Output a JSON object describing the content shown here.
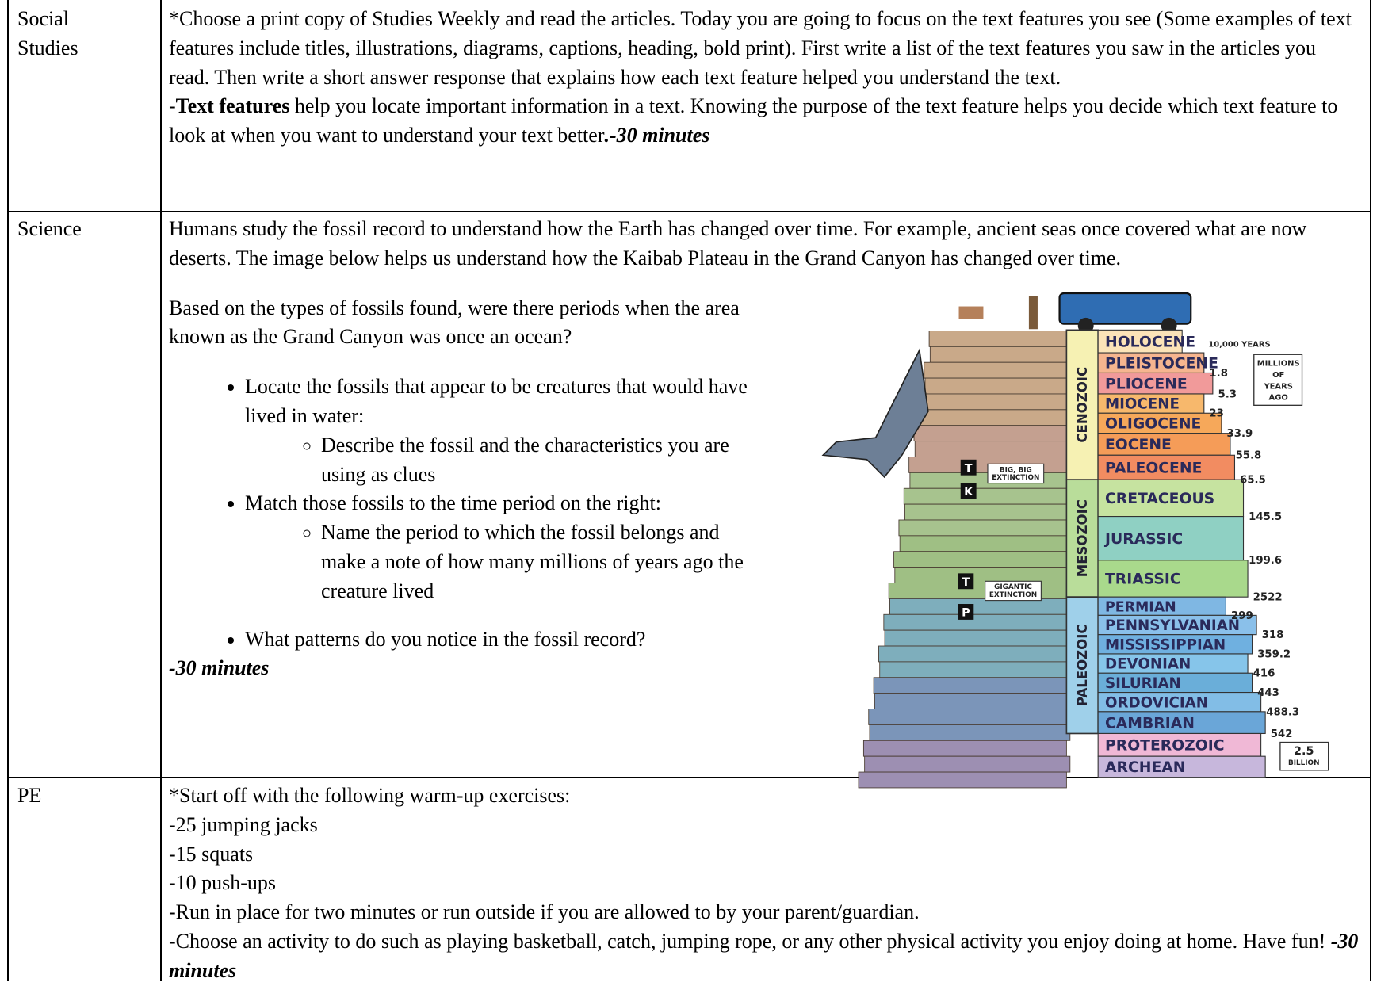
{
  "social_studies": {
    "subject": "Social Studies",
    "intro": " *Choose a print copy of Studies Weekly and read the articles. Today you are going to focus on the text features you see (Some examples of text features include titles, illustrations, diagrams, captions, heading, bold print). First write a list of the text features you saw in the articles you read. Then write a short answer response that explains how each text feature helped you understand the text.",
    "note": {
      "dash": "-",
      "term": "Text features",
      "text": " help you locate important information in a text. Knowing the purpose of the text feature helps you decide which text feature to look at when you want to understand your text better",
      "time": ".-30 minutes"
    }
  },
  "science": {
    "subject": "Science",
    "intro": "Humans study the fossil record to understand how the Earth has changed over time. For example, ancient seas once covered what are now deserts. The image below helps us understand how the Kaibab Plateau in the Grand Canyon has changed over time.",
    "question": "Based on the types of fossils found, were there periods when the area known as the Grand Canyon was once an ocean?",
    "bullets": [
      {
        "text": "Locate the fossils that appear to be creatures that would have lived in water:",
        "sub": "Describe the fossil and the characteristics you are using as clues"
      },
      {
        "text": "Match those fossils to the time period on the right:",
        "sub": "Name the period to which the fossil belongs and make a note of how many millions of years ago the creature lived"
      }
    ],
    "last_bullet": "What patterns do you notice in the fossil record?",
    "time": "-30 minutes",
    "figure": {
      "eras": [
        "CENOZOIC",
        "MESOZOIC",
        "PALEOZOIC"
      ],
      "periods": [
        "HOLOCENE",
        "PLEISTOCENE",
        "PLIOCENE",
        "MIOCENE",
        "OLIGOCENE",
        "EOCENE",
        "PALEOCENE",
        "CRETACEOUS",
        "JURASSIC",
        "TRIASSIC",
        "PERMIAN",
        "PENNSYLVANIAN",
        "MISSISSIPPIAN",
        "DEVONIAN",
        "SILURIAN",
        "ORDOVICIAN",
        "CAMBRIAN",
        "PROTEROZOIC",
        "ARCHEAN"
      ],
      "ages": [
        "10,000 YEARS",
        "1.8",
        "5.3",
        "23",
        "33.9",
        "55.8",
        "65.5",
        "145.5",
        "199.6",
        "2522",
        "299",
        "318",
        "359.2",
        "416",
        "443",
        "488.3",
        "542"
      ],
      "age_unit": [
        "MILLIONS",
        "OF",
        "YEARS",
        "AGO"
      ],
      "oldest": [
        "2.5",
        "BILLION"
      ],
      "extinction_markers": [
        "T",
        "K",
        "T",
        "P"
      ],
      "extinction_labels": [
        [
          "BIG, BIG",
          "EXTINCTION"
        ],
        [
          "GIGANTIC",
          "EXTINCTION"
        ]
      ]
    }
  },
  "pe": {
    "subject": "PE",
    "lines": [
      "*Start off with the following warm-up exercises:",
      "-25 jumping jacks",
      "-15 squats",
      "-10 push-ups",
      "-Run in place for two minutes or run outside if you are allowed to by your parent/guardian."
    ],
    "last": {
      "text": "-Choose an activity to do such as playing basketball, catch, jumping rope, or any other physical activity you enjoy doing at home. Have fun! ",
      "time": "-30 minutes"
    }
  }
}
